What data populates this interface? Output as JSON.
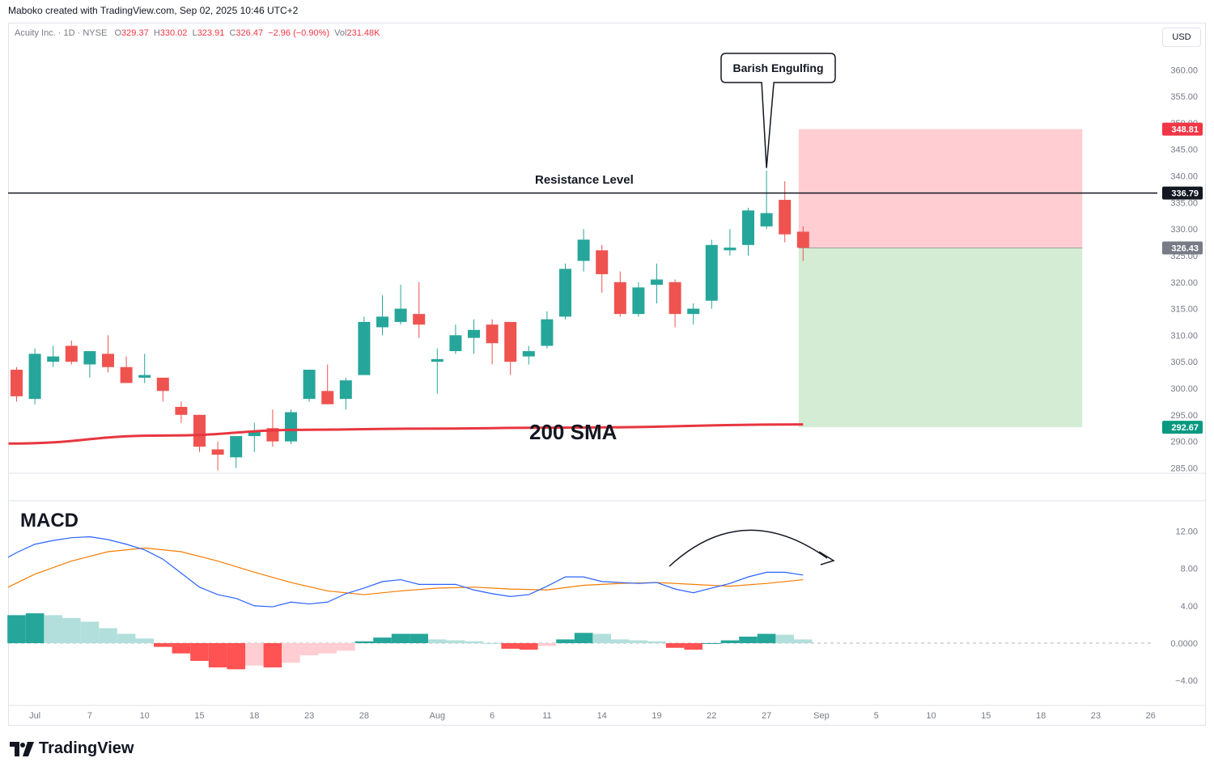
{
  "header": {
    "created_by": "Maboko created with TradingView.com, Sep 02, 2025 10:46 UTC+2",
    "symbol": "Acuity Inc. · 1D · NYSE",
    "o_label": "O",
    "o": "329.37",
    "h_label": "H",
    "h": "330.02",
    "l_label": "L",
    "l": "323.91",
    "c_label": "C",
    "c": "326.47",
    "change": "−2.96 (−0.90%)",
    "vol_label": "Vol",
    "vol": "231.48K",
    "currency": "USD"
  },
  "footer": {
    "brand": "TradingView"
  },
  "colors": {
    "up": "#26a69a",
    "down": "#ef5350",
    "sma": "#e8363f",
    "macd": "#2962ff",
    "signal": "#f57c00",
    "stop_zone": "#ffcdd2",
    "target_zone": "#d4ecd4"
  },
  "chart_data": [
    {
      "type": "candlestick",
      "title": "",
      "x": [
        "Jun 30",
        "Jul 1",
        "Jul 2",
        "Jul 3",
        "Jul 7",
        "Jul 8",
        "Jul 9",
        "Jul 10",
        "Jul 11",
        "Jul 14",
        "Jul 15",
        "Jul 16",
        "Jul 17",
        "Jul 18",
        "Jul 21",
        "Jul 22",
        "Jul 23",
        "Jul 24",
        "Jul 25",
        "Jul 28",
        "Jul 29",
        "Jul 30",
        "Jul 31",
        "Aug 1",
        "Aug 4",
        "Aug 5",
        "Aug 6",
        "Aug 7",
        "Aug 8",
        "Aug 11",
        "Aug 12",
        "Aug 13",
        "Aug 14",
        "Aug 15",
        "Aug 18",
        "Aug 19",
        "Aug 20",
        "Aug 21",
        "Aug 22",
        "Aug 25",
        "Aug 26",
        "Aug 27",
        "Aug 28",
        "Aug 29"
      ],
      "ohlc": [
        [
          303.5,
          304,
          297.5,
          298.5
        ],
        [
          298,
          307.5,
          297,
          306.5
        ],
        [
          305,
          308,
          304,
          306
        ],
        [
          308,
          309,
          304.5,
          305
        ],
        [
          304.5,
          307,
          302,
          307
        ],
        [
          306.5,
          310,
          303,
          304
        ],
        [
          304,
          306,
          301,
          301
        ],
        [
          302,
          306.5,
          301,
          302.5
        ],
        [
          302,
          302,
          297.5,
          299.5
        ],
        [
          296.5,
          297.5,
          293.5,
          295
        ],
        [
          295,
          295,
          288,
          289
        ],
        [
          288.5,
          290,
          284.5,
          287.5
        ],
        [
          287,
          291,
          285,
          291
        ],
        [
          291,
          293.5,
          288,
          292
        ],
        [
          292.5,
          296,
          289,
          290
        ],
        [
          290,
          296,
          289.5,
          295.5
        ],
        [
          298,
          303.5,
          297.5,
          303.5
        ],
        [
          299.5,
          304.5,
          297,
          297
        ],
        [
          298,
          302,
          296,
          301.5
        ],
        [
          302.5,
          313.5,
          302.5,
          312.5
        ],
        [
          311.5,
          317.5,
          310,
          313.5
        ],
        [
          312.5,
          319.5,
          312,
          315
        ],
        [
          314,
          320,
          309.5,
          312
        ],
        [
          305,
          307.5,
          299,
          305.5
        ],
        [
          307,
          312,
          306.5,
          310
        ],
        [
          309.5,
          313,
          306.5,
          311
        ],
        [
          312,
          313,
          304.5,
          308.5
        ],
        [
          312.5,
          312.5,
          302.5,
          305
        ],
        [
          306,
          308,
          304.5,
          307
        ],
        [
          308,
          314.5,
          307.5,
          313
        ],
        [
          313.5,
          323.5,
          313,
          322.5
        ],
        [
          324,
          330,
          322,
          328
        ],
        [
          326,
          327,
          318,
          321.5
        ],
        [
          320,
          322,
          313.5,
          314
        ],
        [
          314,
          320,
          313.5,
          319
        ],
        [
          319.5,
          323.5,
          316,
          320.5
        ],
        [
          320,
          320.5,
          311.5,
          314
        ],
        [
          314,
          316,
          312,
          315
        ],
        [
          316.5,
          328,
          315,
          327
        ],
        [
          326,
          330,
          325,
          326.5
        ],
        [
          327,
          334,
          325,
          333.5
        ],
        [
          330.5,
          341,
          330,
          333
        ],
        [
          335.5,
          339,
          327.5,
          329
        ],
        [
          329.5,
          330.5,
          324,
          326.5
        ]
      ],
      "sma_label": "200 SMA",
      "sma_200": [
        [
          0,
          289.6
        ],
        [
          8,
          291.1
        ],
        [
          16,
          292.2
        ],
        [
          22,
          292.4
        ],
        [
          30,
          292.6
        ],
        [
          43,
          293.2
        ]
      ],
      "ylim": [
        284,
        364
      ],
      "yticks": [
        285,
        290,
        295,
        300,
        305,
        310,
        315,
        320,
        325,
        330,
        335,
        340,
        345,
        350,
        355,
        360
      ],
      "resistance": {
        "label": "Resistance Level",
        "value": 336.79,
        "tag": "336.79"
      },
      "annotation": {
        "label": "Barish Engulfing",
        "bar": 41
      },
      "short_position": {
        "entry": 326.43,
        "stop": 348.81,
        "target": 292.67,
        "entry_tag": "326.43",
        "stop_tag": "348.81",
        "target_tag": "292.67",
        "end_index": 58
      }
    },
    {
      "type": "macd",
      "title": "MACD",
      "macd": [
        [
          -1,
          9.2
        ],
        [
          0,
          9.7
        ],
        [
          1,
          10.6
        ],
        [
          2,
          11.0
        ],
        [
          3,
          11.3
        ],
        [
          4,
          11.4
        ],
        [
          5,
          11.1
        ],
        [
          6,
          10.6
        ],
        [
          7,
          10.0
        ],
        [
          8,
          9.0
        ],
        [
          9,
          7.5
        ],
        [
          10,
          6.0
        ],
        [
          11,
          5.2
        ],
        [
          12,
          4.8
        ],
        [
          13,
          4.0
        ],
        [
          14,
          3.9
        ],
        [
          15,
          4.4
        ],
        [
          16,
          4.2
        ],
        [
          17,
          4.4
        ],
        [
          18,
          5.3
        ],
        [
          19,
          5.9
        ],
        [
          20,
          6.6
        ],
        [
          21,
          6.8
        ],
        [
          22,
          6.3
        ],
        [
          23,
          6.3
        ],
        [
          24,
          6.3
        ],
        [
          25,
          5.7
        ],
        [
          26,
          5.3
        ],
        [
          27,
          5.0
        ],
        [
          28,
          5.2
        ],
        [
          29,
          6.1
        ],
        [
          30,
          7.1
        ],
        [
          31,
          7.1
        ],
        [
          32,
          6.6
        ],
        [
          33,
          6.5
        ],
        [
          34,
          6.4
        ],
        [
          35,
          6.5
        ],
        [
          36,
          5.8
        ],
        [
          37,
          5.4
        ],
        [
          38,
          5.9
        ],
        [
          39,
          6.4
        ],
        [
          40,
          7.1
        ],
        [
          41,
          7.6
        ],
        [
          42,
          7.6
        ],
        [
          43,
          7.3
        ]
      ],
      "signal": [
        [
          -1,
          6.0
        ],
        [
          1,
          7.4
        ],
        [
          3,
          8.8
        ],
        [
          5,
          9.8
        ],
        [
          7,
          10.2
        ],
        [
          9,
          9.8
        ],
        [
          11,
          8.8
        ],
        [
          13,
          7.6
        ],
        [
          15,
          6.5
        ],
        [
          17,
          5.6
        ],
        [
          19,
          5.2
        ],
        [
          21,
          5.6
        ],
        [
          23,
          5.9
        ],
        [
          25,
          6.0
        ],
        [
          27,
          5.8
        ],
        [
          29,
          5.7
        ],
        [
          31,
          6.2
        ],
        [
          33,
          6.4
        ],
        [
          35,
          6.5
        ],
        [
          37,
          6.3
        ],
        [
          39,
          6.1
        ],
        [
          41,
          6.4
        ],
        [
          43,
          6.8
        ]
      ],
      "histogram": [
        3.0,
        3.2,
        3.0,
        2.7,
        2.3,
        1.6,
        1.0,
        0.5,
        -0.4,
        -1.1,
        -1.9,
        -2.6,
        -2.8,
        -2.4,
        -2.6,
        -2.1,
        -1.3,
        -1.1,
        -0.8,
        0.2,
        0.6,
        1.0,
        1.0,
        0.4,
        0.3,
        0.2,
        0.0,
        -0.6,
        -0.7,
        -0.3,
        0.4,
        1.1,
        1.0,
        0.4,
        0.3,
        0.2,
        -0.5,
        -0.7,
        0.0,
        0.3,
        0.7,
        1.0,
        0.9,
        0.4
      ],
      "ylim": [
        -6.5,
        15
      ],
      "yticks": [
        "12.00",
        "8.00",
        "4.00",
        "0.0000",
        "−4.00"
      ],
      "ytick_values": [
        12,
        8,
        4,
        0,
        -4
      ]
    }
  ],
  "x_axis": {
    "labels": [
      {
        "text": "Jul",
        "index": 1
      },
      {
        "text": "7",
        "index": 4
      },
      {
        "text": "10",
        "index": 7
      },
      {
        "text": "15",
        "index": 10
      },
      {
        "text": "18",
        "index": 13
      },
      {
        "text": "23",
        "index": 16
      },
      {
        "text": "28",
        "index": 19
      },
      {
        "text": "Aug",
        "index": 23
      },
      {
        "text": "6",
        "index": 26
      },
      {
        "text": "11",
        "index": 29
      },
      {
        "text": "14",
        "index": 32
      },
      {
        "text": "19",
        "index": 35
      },
      {
        "text": "22",
        "index": 38
      },
      {
        "text": "27",
        "index": 41
      },
      {
        "text": "Sep",
        "index": 44
      },
      {
        "text": "5",
        "index": 47
      },
      {
        "text": "10",
        "index": 50
      },
      {
        "text": "15",
        "index": 53
      },
      {
        "text": "18",
        "index": 56
      },
      {
        "text": "23",
        "index": 59
      },
      {
        "text": "26",
        "index": 62
      }
    ]
  }
}
